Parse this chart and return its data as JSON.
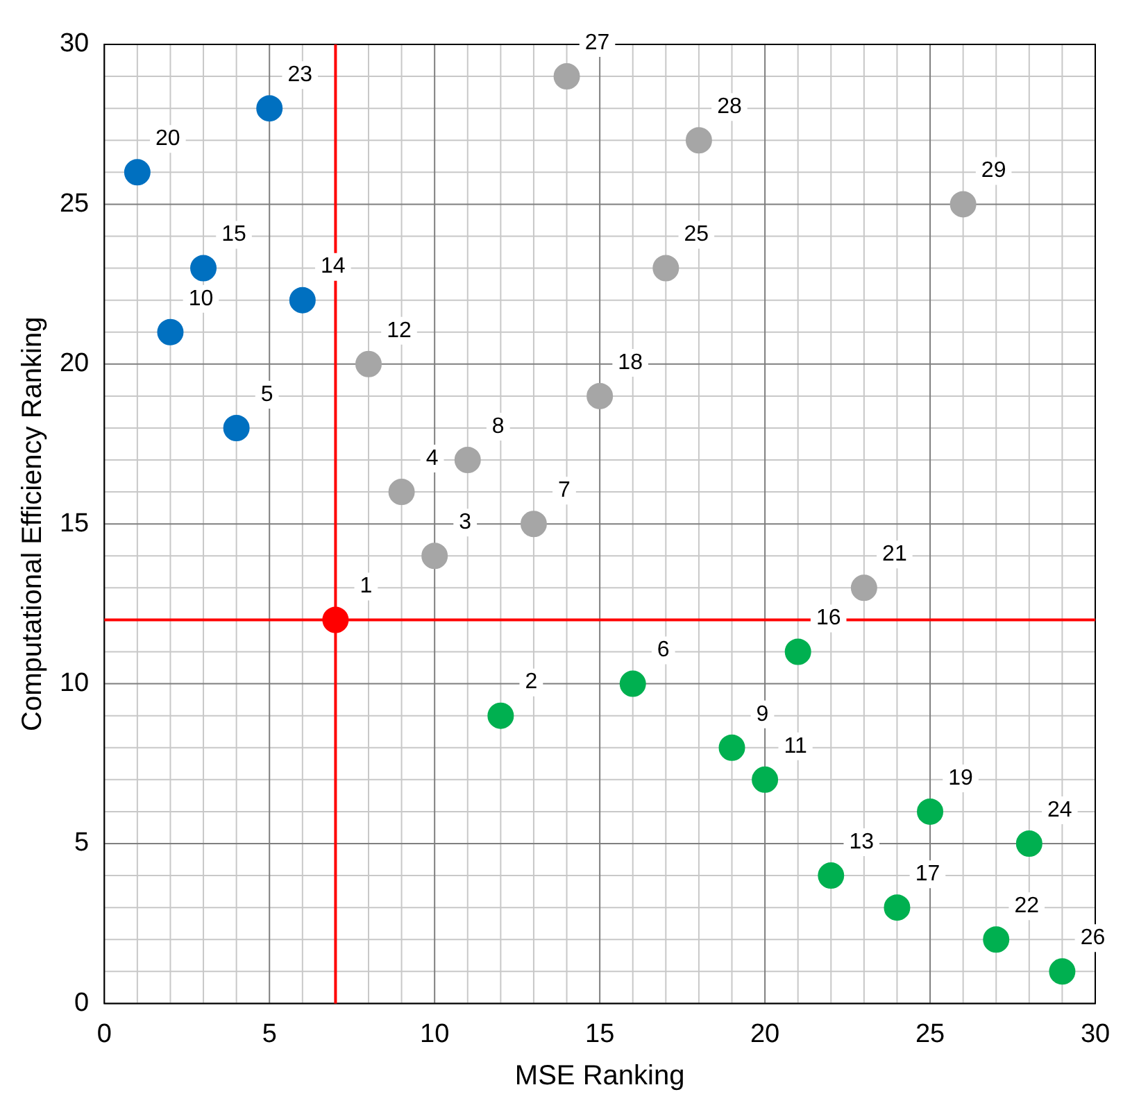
{
  "chart_data": {
    "type": "scatter",
    "xlabel": "MSE Ranking",
    "ylabel": "Computational Efficiency Ranking",
    "xlim": [
      0,
      30
    ],
    "ylim": [
      0,
      30
    ],
    "xticks": [
      0,
      5,
      10,
      15,
      20,
      25,
      30
    ],
    "yticks": [
      0,
      5,
      10,
      15,
      20,
      25,
      30
    ],
    "grid": true,
    "legend": false,
    "marker": "circle",
    "series": [
      {
        "color": "#0070c0",
        "x": [
          5,
          1,
          3,
          2,
          6,
          4
        ],
        "values": [
          28,
          26,
          23,
          21,
          22,
          18
        ]
      },
      {
        "color": "#ff0000",
        "x": [
          7
        ],
        "values": [
          12
        ]
      },
      {
        "color": "#a6a6a6",
        "x": [
          14,
          18,
          26,
          17,
          8,
          15,
          11,
          9,
          13,
          10,
          23
        ],
        "values": [
          29,
          27,
          25,
          23,
          20,
          19,
          17,
          16,
          15,
          14,
          13
        ]
      },
      {
        "color": "#00b050",
        "x": [
          21,
          16,
          12,
          19,
          20,
          25,
          28,
          22,
          24,
          27,
          29
        ],
        "values": [
          11,
          10,
          9,
          8,
          7,
          6,
          5,
          4,
          3,
          2,
          1
        ]
      }
    ],
    "annotations": [
      {
        "text": "23",
        "x": 5,
        "y": 28
      },
      {
        "text": "20",
        "x": 1,
        "y": 26
      },
      {
        "text": "15",
        "x": 3,
        "y": 23
      },
      {
        "text": "10",
        "x": 2,
        "y": 21
      },
      {
        "text": "14",
        "x": 6,
        "y": 22
      },
      {
        "text": "5",
        "x": 4,
        "y": 18
      },
      {
        "text": "1",
        "x": 7,
        "y": 12
      },
      {
        "text": "27",
        "x": 14,
        "y": 29
      },
      {
        "text": "28",
        "x": 18,
        "y": 27
      },
      {
        "text": "29",
        "x": 26,
        "y": 25
      },
      {
        "text": "25",
        "x": 17,
        "y": 23
      },
      {
        "text": "12",
        "x": 8,
        "y": 20
      },
      {
        "text": "18",
        "x": 15,
        "y": 19
      },
      {
        "text": "8",
        "x": 11,
        "y": 17
      },
      {
        "text": "4",
        "x": 9,
        "y": 16
      },
      {
        "text": "7",
        "x": 13,
        "y": 15
      },
      {
        "text": "3",
        "x": 10,
        "y": 14
      },
      {
        "text": "21",
        "x": 23,
        "y": 13
      },
      {
        "text": "16",
        "x": 21,
        "y": 11
      },
      {
        "text": "6",
        "x": 16,
        "y": 10
      },
      {
        "text": "2",
        "x": 12,
        "y": 9
      },
      {
        "text": "9",
        "x": 19,
        "y": 8
      },
      {
        "text": "11",
        "x": 20,
        "y": 7
      },
      {
        "text": "19",
        "x": 25,
        "y": 6
      },
      {
        "text": "24",
        "x": 28,
        "y": 5
      },
      {
        "text": "13",
        "x": 22,
        "y": 4
      },
      {
        "text": "17",
        "x": 24,
        "y": 3
      },
      {
        "text": "22",
        "x": 27,
        "y": 2
      },
      {
        "text": "26",
        "x": 29,
        "y": 1
      }
    ],
    "ref_lines": [
      {
        "axis": "x",
        "value": 7,
        "color": "#ff0000"
      },
      {
        "axis": "y",
        "value": 12,
        "color": "#ff0000"
      }
    ]
  }
}
